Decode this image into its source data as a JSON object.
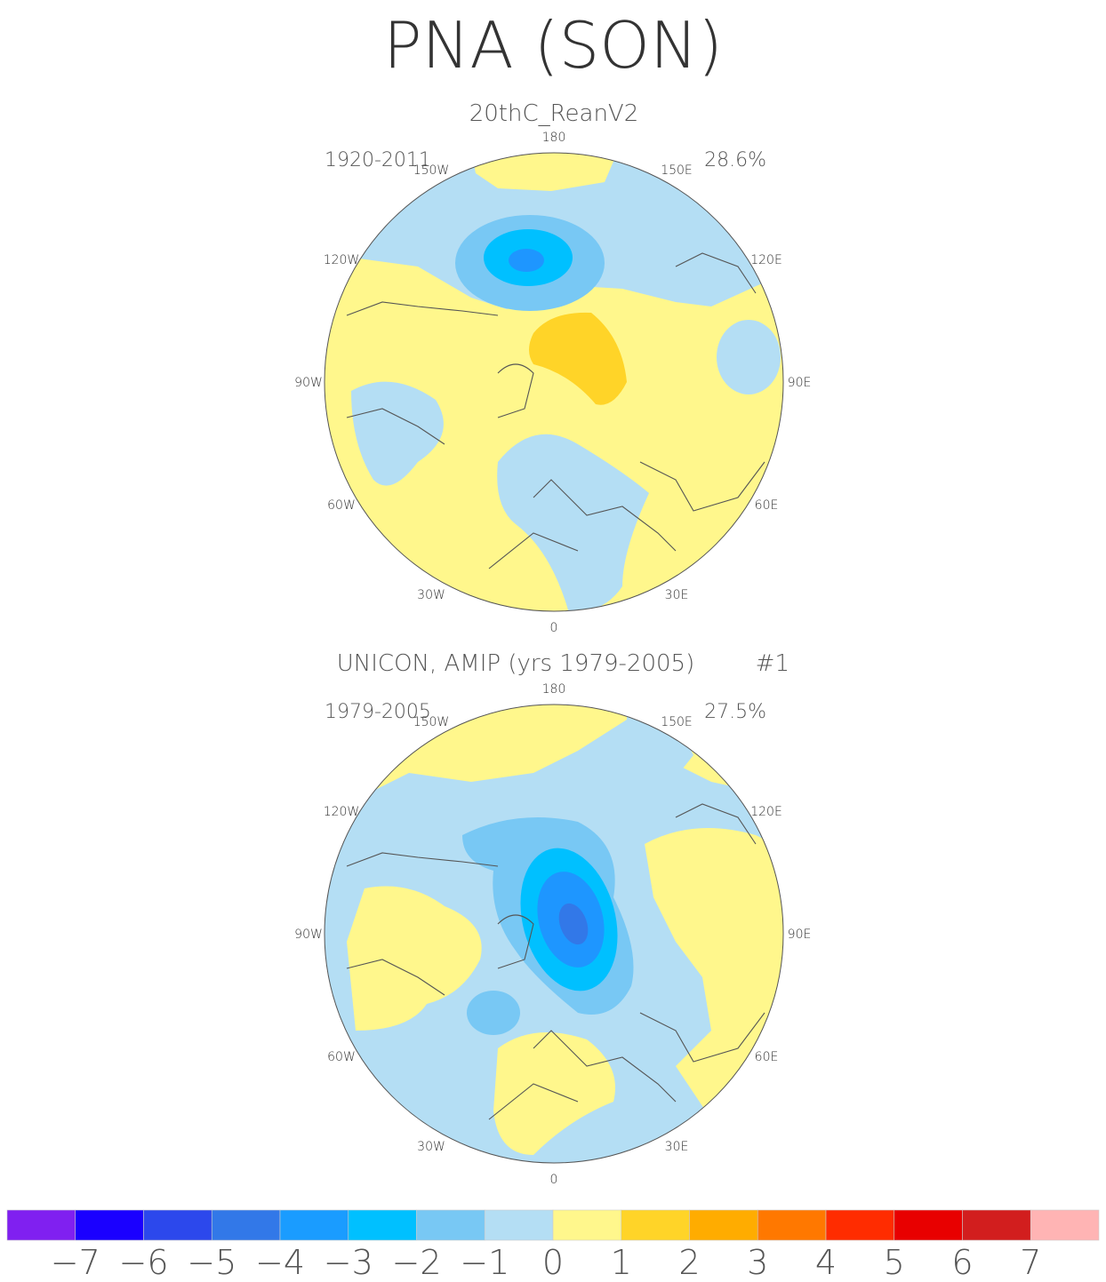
{
  "figure": {
    "title": "PNA (SON)"
  },
  "panels": [
    {
      "subtitle": "20thC_ReanV2",
      "period": "1920-2011",
      "variance": "28.6%"
    },
    {
      "subtitle": "UNICON, AMIP (yrs 1979-2005)",
      "member": "#1",
      "period": "1979-2005",
      "variance": "27.5%"
    }
  ],
  "longitude_labels": [
    "180",
    "150E",
    "120E",
    "90E",
    "60E",
    "30E",
    "0",
    "30W",
    "60W",
    "90W",
    "120W",
    "150W"
  ],
  "colorbar": {
    "labels": [
      "-7",
      "-6",
      "-5",
      "-4",
      "-3",
      "-2",
      "-1",
      "0",
      "1",
      "2",
      "3",
      "4",
      "5",
      "6",
      "7"
    ],
    "colors": [
      "#8020f0",
      "#1a00ff",
      "#2c48ec",
      "#3278e8",
      "#1a9cff",
      "#00c0ff",
      "#78c8f4",
      "#b4def4",
      "#fff78c",
      "#ffd428",
      "#ffac00",
      "#ff7800",
      "#ff2c00",
      "#e80000",
      "#d21e1e",
      "#ffb4b4"
    ]
  }
}
